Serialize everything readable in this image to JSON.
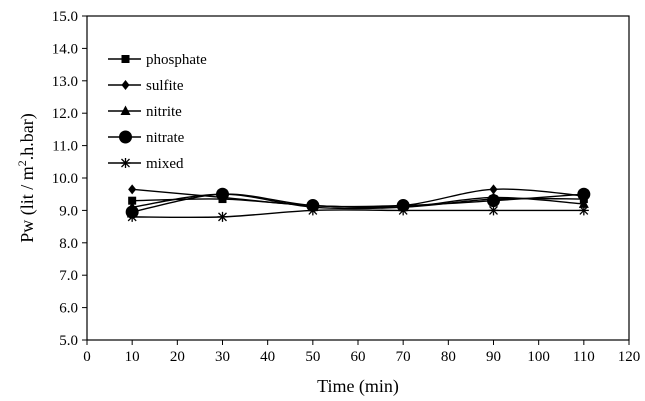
{
  "chart_data": {
    "type": "line",
    "xlabel": "Time (min)",
    "ylabel": {
      "pre": "Pw (lit / m",
      "sup": "2",
      "post": ".h.bar)"
    },
    "xlim": [
      0,
      120
    ],
    "ylim": [
      5.0,
      15.0
    ],
    "x_ticks": [
      "0",
      "10",
      "20",
      "30",
      "40",
      "50",
      "60",
      "70",
      "80",
      "90",
      "100",
      "110",
      "120"
    ],
    "y_ticks": [
      "5.0",
      "6.0",
      "7.0",
      "8.0",
      "9.0",
      "10.0",
      "11.0",
      "12.0",
      "13.0",
      "14.0",
      "15.0"
    ],
    "grid": false,
    "legend_position": "top-left",
    "x": [
      10,
      30,
      50,
      70,
      90,
      110
    ],
    "series": [
      {
        "name": "phosphate",
        "marker": "square",
        "values": [
          9.3,
          9.35,
          9.15,
          9.1,
          9.35,
          9.35
        ]
      },
      {
        "name": "sulfite",
        "marker": "diamond",
        "values": [
          9.65,
          9.4,
          9.15,
          9.15,
          9.65,
          9.45
        ]
      },
      {
        "name": "nitrite",
        "marker": "triangle",
        "values": [
          9.1,
          9.5,
          9.1,
          9.1,
          9.4,
          9.2
        ]
      },
      {
        "name": "nitrate",
        "marker": "circle",
        "values": [
          8.95,
          9.5,
          9.15,
          9.15,
          9.3,
          9.5
        ]
      },
      {
        "name": "mixed",
        "marker": "asterisk",
        "values": [
          8.8,
          8.8,
          9.0,
          9.0,
          9.0,
          9.0
        ]
      }
    ]
  }
}
